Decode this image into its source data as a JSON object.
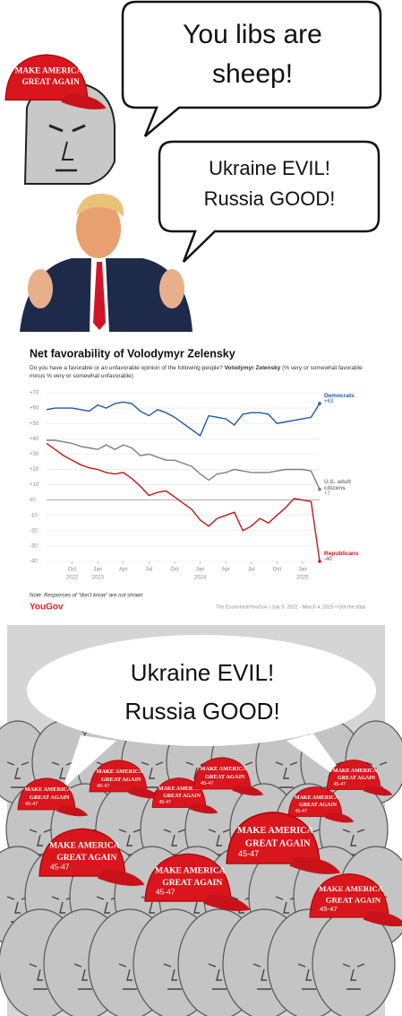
{
  "panel1": {
    "bubble_lines": [
      "You libs are",
      "sheep!"
    ]
  },
  "panel2": {
    "bubble_lines": [
      "Ukraine EVIL!",
      "Russia GOOD!"
    ]
  },
  "hat": {
    "line1": "MAKE AMERICA",
    "line2": "GREAT AGAIN",
    "number": "45-47"
  },
  "chart_data": {
    "type": "line",
    "title": "Net favorability of Volodymyr Zelensky",
    "subtitle": {
      "question": "Do you have a favorable or an unfavorable opinion of the following people?",
      "subject": "Volodymyr Zelensky",
      "detail": "(% very or somewhat favorable minus % very or somewhat unfavorable)"
    },
    "x": [
      "2022-07",
      "2022-08",
      "2022-09",
      "2022-10",
      "2022-11",
      "2022-12",
      "2023-01",
      "2023-02",
      "2023-03",
      "2023-04",
      "2023-05",
      "2023-06",
      "2023-07",
      "2023-08",
      "2023-09",
      "2023-10",
      "2023-11",
      "2023-12",
      "2024-01",
      "2024-02",
      "2024-03",
      "2024-04",
      "2024-05",
      "2024-06",
      "2024-07",
      "2024-08",
      "2024-09",
      "2024-10",
      "2024-11",
      "2024-12",
      "2025-01",
      "2025-02",
      "2025-03"
    ],
    "xlim": [
      "2022-07",
      "2025-03"
    ],
    "xticks": [
      {
        "value": "2022-10",
        "label": "Oct"
      },
      {
        "value": "2023-01",
        "label": "Jan"
      },
      {
        "value": "2023-04",
        "label": "Apr"
      },
      {
        "value": "2023-07",
        "label": "Jul"
      },
      {
        "value": "2023-10",
        "label": "Oct"
      },
      {
        "value": "2024-01",
        "label": "Jan"
      },
      {
        "value": "2024-04",
        "label": "Apr"
      },
      {
        "value": "2024-07",
        "label": "Jul"
      },
      {
        "value": "2024-10",
        "label": "Oct"
      },
      {
        "value": "2025-01",
        "label": "Jan"
      }
    ],
    "x_year_labels": [
      {
        "value": "2022-10",
        "label": "2022"
      },
      {
        "value": "2023-01",
        "label": "2023"
      },
      {
        "value": "2024-01",
        "label": "2024"
      },
      {
        "value": "2025-01",
        "label": "2025"
      }
    ],
    "ylim": [
      -40,
      70
    ],
    "yticks": [
      {
        "value": 70,
        "label": "+70"
      },
      {
        "value": 60,
        "label": "+60"
      },
      {
        "value": 50,
        "label": "+50"
      },
      {
        "value": 40,
        "label": "+40"
      },
      {
        "value": 30,
        "label": "+30"
      },
      {
        "value": 20,
        "label": "+20"
      },
      {
        "value": 10,
        "label": "+10"
      },
      {
        "value": 0,
        "label": "±0"
      },
      -10,
      -20,
      -30,
      -40
    ],
    "grid": true,
    "series": [
      {
        "name": "Democrats",
        "color": "#1f5aa6",
        "values": [
          59,
          60,
          60,
          60,
          59,
          58,
          62,
          60,
          63,
          64,
          63,
          58,
          55,
          59,
          57,
          54,
          50,
          46,
          42,
          55,
          54,
          53,
          49,
          56,
          57,
          57,
          56,
          50,
          51,
          52,
          53,
          54,
          63
        ],
        "value_labels": [
          null,
          null,
          null,
          null,
          null,
          null,
          null,
          null,
          null,
          null,
          null,
          null,
          null,
          null,
          null,
          null,
          null,
          null,
          null,
          null,
          null,
          null,
          null,
          null,
          null,
          null,
          null,
          null,
          null,
          null,
          null,
          null,
          "+63"
        ]
      },
      {
        "name": "U.S. adult citizens",
        "color": "#7f7f7f",
        "values": [
          39,
          39,
          38,
          37,
          35,
          34,
          33,
          36,
          33,
          36,
          34,
          29,
          30,
          28,
          26,
          26,
          24,
          22,
          17,
          13,
          17,
          18,
          20,
          19,
          18,
          18,
          18,
          19,
          20,
          20,
          20,
          19,
          7
        ],
        "value_labels": [
          null,
          null,
          null,
          null,
          null,
          null,
          null,
          null,
          null,
          null,
          null,
          null,
          null,
          null,
          null,
          null,
          null,
          null,
          null,
          null,
          null,
          null,
          null,
          null,
          null,
          null,
          null,
          null,
          null,
          null,
          null,
          null,
          "+7"
        ]
      },
      {
        "name": "Republicans",
        "color": "#c0191c",
        "values": [
          37,
          33,
          29,
          26,
          23,
          21,
          20,
          18,
          17,
          18,
          14,
          9,
          3,
          5,
          6,
          2,
          -2,
          -6,
          -13,
          -17,
          -12,
          -10,
          -8,
          -20,
          -17,
          -12,
          -15,
          -10,
          -5,
          1,
          0,
          -1,
          -40
        ],
        "value_labels": [
          null,
          null,
          null,
          null,
          null,
          null,
          null,
          null,
          null,
          null,
          null,
          null,
          null,
          null,
          null,
          null,
          null,
          null,
          null,
          null,
          null,
          null,
          null,
          null,
          null,
          null,
          null,
          null,
          null,
          null,
          null,
          null,
          "-40"
        ]
      }
    ],
    "note": "Note: Responses of \"don't know\" are not shown",
    "brand": "YouGov",
    "source": "The Economist/YouGov | July 9, 2022 - March 4, 2025 • Get the data"
  },
  "panel4": {
    "bubble_lines": [
      "Ukraine EVIL!",
      "Russia GOOD!"
    ]
  }
}
